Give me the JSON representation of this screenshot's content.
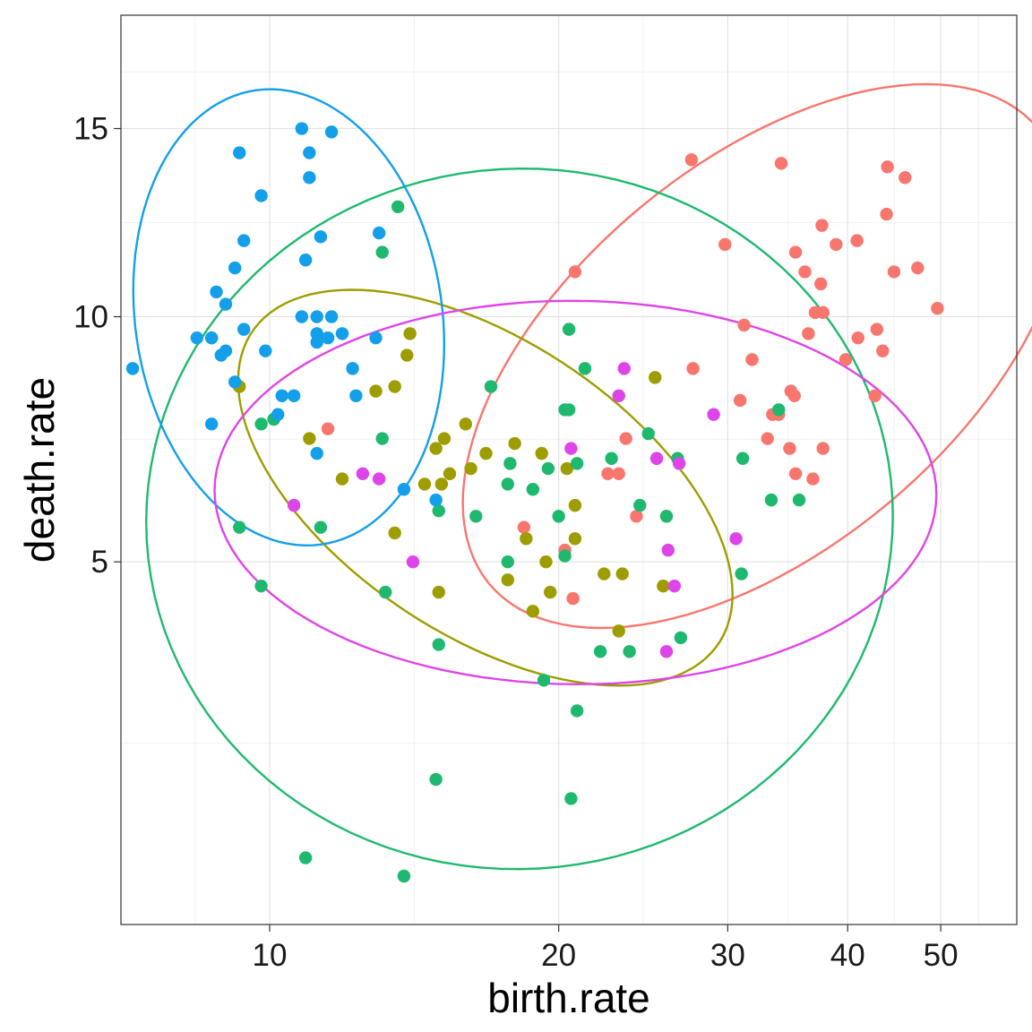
{
  "chart_data": {
    "type": "scatter",
    "title": "",
    "xlabel": "birth.rate",
    "ylabel": "death.rate",
    "x_scale": "log",
    "y_scale": "sqrt",
    "xlim": [
      7.0,
      60.0
    ],
    "ylim": [
      0.75,
      18.5
    ],
    "x_ticks": [
      10,
      20,
      30,
      40,
      50
    ],
    "y_ticks": [
      5,
      10,
      15
    ],
    "grid": true,
    "legend": "none",
    "series": [
      {
        "color": "#F8766D",
        "ellipse_center": [
          30.8,
          8.0
        ],
        "points": [
          [
            11.5,
            7.5
          ],
          [
            20.8,
            11.1
          ],
          [
            27.5,
            14.1
          ],
          [
            29.8,
            11.8
          ],
          [
            34.1,
            14.0
          ],
          [
            45.9,
            13.6
          ],
          [
            44.0,
            13.9
          ],
          [
            37.6,
            12.3
          ],
          [
            38.9,
            11.8
          ],
          [
            40.9,
            11.9
          ],
          [
            35.3,
            11.6
          ],
          [
            36.1,
            11.1
          ],
          [
            37.5,
            10.8
          ],
          [
            47.3,
            11.2
          ],
          [
            44.7,
            11.1
          ],
          [
            43.9,
            12.6
          ],
          [
            49.6,
            10.2
          ],
          [
            37.0,
            10.1
          ],
          [
            37.7,
            10.1
          ],
          [
            36.4,
            9.6
          ],
          [
            31.2,
            9.8
          ],
          [
            41.0,
            9.5
          ],
          [
            42.9,
            9.7
          ],
          [
            43.5,
            9.2
          ],
          [
            39.8,
            9.0
          ],
          [
            31.8,
            9.0
          ],
          [
            27.6,
            8.8
          ],
          [
            34.9,
            8.3
          ],
          [
            35.2,
            8.2
          ],
          [
            42.7,
            8.2
          ],
          [
            30.9,
            8.1
          ],
          [
            33.4,
            7.8
          ],
          [
            33.9,
            7.8
          ],
          [
            37.7,
            7.1
          ],
          [
            33.0,
            7.3
          ],
          [
            34.8,
            7.1
          ],
          [
            23.5,
            7.3
          ],
          [
            35.3,
            6.6
          ],
          [
            36.8,
            6.5
          ],
          [
            22.5,
            6.6
          ],
          [
            23.1,
            6.6
          ],
          [
            24.1,
            5.8
          ],
          [
            25.9,
            5.8
          ],
          [
            18.4,
            5.6
          ],
          [
            20.3,
            5.2
          ],
          [
            20.7,
            4.4
          ]
        ]
      },
      {
        "color": "#9D9D00",
        "ellipse_center": [
          17.4,
          6.8
        ],
        "points": [
          [
            9.3,
            8.4
          ],
          [
            14.0,
            9.6
          ],
          [
            13.9,
            9.1
          ],
          [
            13.5,
            8.4
          ],
          [
            12.9,
            8.3
          ],
          [
            16.0,
            7.6
          ],
          [
            11.0,
            7.3
          ],
          [
            15.2,
            7.3
          ],
          [
            18.0,
            7.2
          ],
          [
            14.9,
            7.1
          ],
          [
            16.8,
            7.0
          ],
          [
            19.2,
            7.0
          ],
          [
            25.2,
            8.6
          ],
          [
            15.4,
            6.6
          ],
          [
            16.2,
            6.7
          ],
          [
            11.9,
            6.5
          ],
          [
            20.4,
            6.7
          ],
          [
            14.5,
            6.4
          ],
          [
            15.1,
            6.4
          ],
          [
            20.8,
            6.0
          ],
          [
            20.8,
            5.4
          ],
          [
            18.5,
            5.4
          ],
          [
            13.5,
            5.5
          ],
          [
            19.4,
            5.0
          ],
          [
            17.7,
            4.7
          ],
          [
            15.0,
            4.5
          ],
          [
            19.6,
            4.5
          ],
          [
            18.8,
            4.2
          ],
          [
            22.3,
            4.8
          ],
          [
            23.3,
            4.8
          ],
          [
            23.1,
            3.9
          ],
          [
            25.7,
            4.6
          ]
        ]
      },
      {
        "color": "#1EB96E",
        "ellipse_center": [
          19.1,
          6.2
        ],
        "points": [
          [
            13.6,
            12.8
          ],
          [
            13.1,
            11.6
          ],
          [
            8.7,
            9.5
          ],
          [
            20.5,
            9.7
          ],
          [
            21.3,
            8.8
          ],
          [
            17.0,
            8.4
          ],
          [
            20.3,
            7.9
          ],
          [
            20.5,
            7.9
          ],
          [
            9.8,
            7.6
          ],
          [
            10.1,
            7.7
          ],
          [
            13.1,
            7.3
          ],
          [
            24.8,
            7.4
          ],
          [
            17.8,
            6.8
          ],
          [
            20.9,
            6.8
          ],
          [
            22.7,
            6.9
          ],
          [
            26.6,
            6.9
          ],
          [
            31.1,
            6.9
          ],
          [
            19.5,
            6.7
          ],
          [
            17.7,
            6.4
          ],
          [
            18.8,
            6.3
          ],
          [
            24.3,
            6.0
          ],
          [
            15.0,
            5.9
          ],
          [
            16.4,
            5.8
          ],
          [
            20.0,
            5.8
          ],
          [
            25.9,
            5.8
          ],
          [
            33.3,
            6.1
          ],
          [
            35.6,
            6.1
          ],
          [
            9.3,
            5.6
          ],
          [
            11.3,
            5.6
          ],
          [
            20.3,
            5.1
          ],
          [
            17.7,
            5.0
          ],
          [
            31.0,
            4.8
          ],
          [
            9.8,
            4.6
          ],
          [
            13.2,
            4.5
          ],
          [
            26.8,
            3.8
          ],
          [
            22.1,
            3.6
          ],
          [
            23.7,
            3.6
          ],
          [
            15.0,
            3.7
          ],
          [
            19.3,
            3.2
          ],
          [
            20.9,
            2.8
          ],
          [
            14.9,
            2.0
          ],
          [
            20.6,
            1.8
          ],
          [
            10.9,
            1.25
          ],
          [
            13.8,
            1.1
          ],
          [
            33.9,
            7.9
          ]
        ]
      },
      {
        "color": "#139FEA",
        "ellipse_center": [
          10.4,
          10.3
        ],
        "points": [
          [
            10.8,
            15.0
          ],
          [
            11.6,
            14.9
          ],
          [
            9.3,
            14.3
          ],
          [
            11.0,
            14.3
          ],
          [
            11.0,
            13.6
          ],
          [
            9.8,
            13.1
          ],
          [
            13.0,
            12.1
          ],
          [
            11.3,
            12.0
          ],
          [
            9.4,
            11.9
          ],
          [
            10.9,
            11.4
          ],
          [
            9.2,
            11.2
          ],
          [
            8.8,
            10.6
          ],
          [
            9.0,
            10.3
          ],
          [
            10.8,
            10.0
          ],
          [
            11.2,
            10.0
          ],
          [
            11.6,
            10.0
          ],
          [
            9.4,
            9.7
          ],
          [
            11.2,
            9.6
          ],
          [
            11.9,
            9.6
          ],
          [
            11.2,
            9.4
          ],
          [
            11.5,
            9.5
          ],
          [
            8.4,
            9.5
          ],
          [
            8.7,
            9.5
          ],
          [
            9.0,
            9.2
          ],
          [
            9.9,
            9.2
          ],
          [
            8.9,
            9.1
          ],
          [
            9.2,
            8.5
          ],
          [
            12.2,
            8.8
          ],
          [
            10.3,
            8.2
          ],
          [
            10.6,
            8.2
          ],
          [
            12.3,
            8.2
          ],
          [
            12.9,
            9.5
          ],
          [
            7.2,
            8.8
          ],
          [
            10.2,
            7.8
          ],
          [
            8.7,
            7.6
          ],
          [
            11.2,
            7.0
          ],
          [
            13.8,
            6.3
          ],
          [
            14.9,
            6.1
          ]
        ]
      },
      {
        "color": "#DE45E8",
        "ellipse_center": [
          20.4,
          6.3
        ],
        "points": [
          [
            23.4,
            8.8
          ],
          [
            23.1,
            8.2
          ],
          [
            29.0,
            7.8
          ],
          [
            20.6,
            7.1
          ],
          [
            25.3,
            6.9
          ],
          [
            26.7,
            6.8
          ],
          [
            12.5,
            6.6
          ],
          [
            13.0,
            6.5
          ],
          [
            10.6,
            6.0
          ],
          [
            30.6,
            5.4
          ],
          [
            26.0,
            5.2
          ],
          [
            14.1,
            5.0
          ],
          [
            26.4,
            4.6
          ],
          [
            25.9,
            3.6
          ]
        ]
      }
    ]
  }
}
